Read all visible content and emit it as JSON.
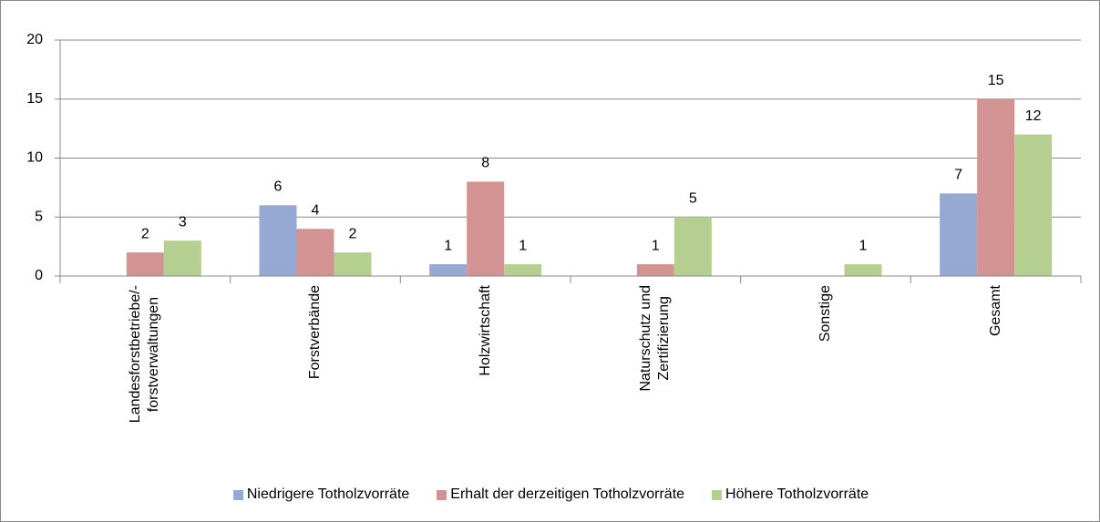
{
  "chart_data": {
    "type": "bar",
    "categories": [
      "Landesforstbetriebe/-\nforstverwaltungen",
      "Forstverbände",
      "Holzwirtschaft",
      "Naturschutz und\nZertifizierung",
      "Sonstige",
      "Gesamt"
    ],
    "series": [
      {
        "name": "Niedrigere Totholzvorräte",
        "color": "#95a9d2",
        "values": [
          null,
          6,
          1,
          null,
          null,
          7
        ]
      },
      {
        "name": "Erhalt der derzeitigen Totholzvorräte",
        "color": "#d49393",
        "values": [
          2,
          4,
          8,
          1,
          null,
          15
        ]
      },
      {
        "name": "Höhere Totholzvorräte",
        "color": "#b5cf91",
        "values": [
          3,
          2,
          1,
          5,
          1,
          12
        ]
      }
    ],
    "ylim": [
      0,
      20
    ],
    "yticks": [
      0,
      5,
      10,
      15,
      20
    ],
    "grid": true,
    "legend": "bottom"
  }
}
